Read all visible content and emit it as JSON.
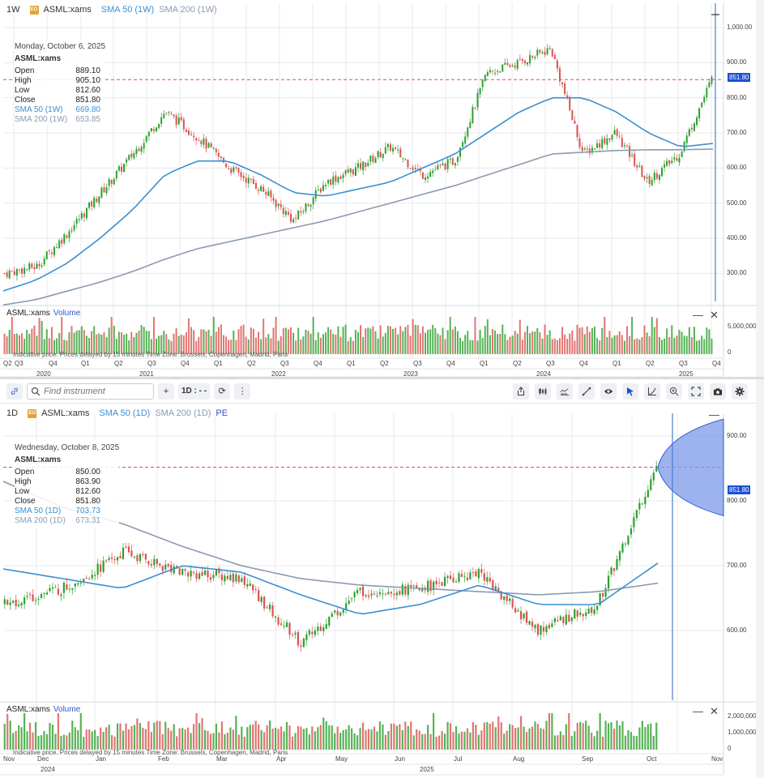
{
  "weekly": {
    "timeframe": "1W",
    "exchange_badge": "EO",
    "symbol": "ASML:xams",
    "sma50_label": "SMA 50 (1W)",
    "sma200_label": "SMA 200 (1W)",
    "ohlc": {
      "date": "Monday, October 6, 2025",
      "symbol": "ASML:xams",
      "open_label": "Open",
      "open": "889.10",
      "high_label": "High",
      "high": "905.10",
      "low_label": "Low",
      "low": "812.60",
      "close_label": "Close",
      "close": "851.80",
      "sma50_label": "SMA 50 (1W)",
      "sma50": "669.80",
      "sma200_label": "SMA 200 (1W)",
      "sma200": "653.85"
    },
    "price_axis": [
      "1,000.00",
      "900.00",
      "800.00",
      "700.00",
      "600.00",
      "500.00",
      "400.00",
      "300.00"
    ],
    "last_price_tag": "851.80",
    "volume": {
      "symbol": "ASML:xams",
      "label": "Volume",
      "axis": [
        "5,000,000",
        "0"
      ]
    },
    "disclaimer": "Indicative price. Prices delayed by 15 minutes    Time Zone: Brussels, Copenhagen, Madrid, Paris",
    "x_labels": [
      "Q2",
      "Q3",
      "Q4",
      "Q1",
      "Q2",
      "Q3",
      "Q4",
      "Q1",
      "Q2",
      "Q3",
      "Q4",
      "Q1",
      "Q2",
      "Q3",
      "Q4",
      "Q1",
      "Q2",
      "Q3",
      "Q4",
      "Q1",
      "Q2",
      "Q3",
      "Q4"
    ],
    "years": [
      "2020",
      "2021",
      "2022",
      "2023",
      "2024",
      "2025"
    ],
    "minimize": "—",
    "close": "✕"
  },
  "toolbar": {
    "link_icon": "🔗",
    "search_placeholder": "Find instrument",
    "add": "+",
    "interval": "1D : - -",
    "refresh": "⟳",
    "more": "⋮",
    "right_buttons": [
      "share",
      "indicators",
      "chart-type",
      "draw",
      "visibility",
      "cursor",
      "scale",
      "zoom",
      "fullscreen",
      "snapshot",
      "settings"
    ]
  },
  "daily": {
    "timeframe": "1D",
    "exchange_badge": "EO",
    "symbol": "ASML:xams",
    "sma50_label": "SMA 50 (1D)",
    "sma200_label": "SMA 200 (1D)",
    "pe_label": "PE",
    "ohlc": {
      "date": "Wednesday, October 8, 2025",
      "symbol": "ASML:xams",
      "open_label": "Open",
      "open": "850.00",
      "high_label": "High",
      "high": "863.90",
      "low_label": "Low",
      "low": "812.60",
      "close_label": "Close",
      "close": "851.80",
      "sma50_label": "SMA 50 (1D)",
      "sma50": "703.73",
      "sma200_label": "SMA 200 (1D)",
      "sma200": "673.31"
    },
    "price_axis": [
      "900.00",
      "800.00",
      "700.00",
      "600.00"
    ],
    "last_price_tag": "851.80",
    "volume": {
      "symbol": "ASML:xams",
      "label": "Volume",
      "axis": [
        "2,000,000",
        "1,000,000",
        "0"
      ]
    },
    "disclaimer": "Indicative price. Prices delayed by 15 minutes    Time Zone: Brussels, Copenhagen, Madrid, Paris",
    "x_labels": [
      "Nov",
      "Dec",
      "Jan",
      "Feb",
      "Mar",
      "Apr",
      "May",
      "Jun",
      "Jul",
      "Aug",
      "Sep",
      "Oct",
      "Nov"
    ],
    "years": [
      "2024",
      "2025"
    ],
    "minimize": "—",
    "close": "✕"
  },
  "colors": {
    "up": "#2ca02c",
    "down": "#d9534f",
    "sma50": "#3a8fd1",
    "sma200": "#8b9ab0",
    "crosshair": "#4a7bd6",
    "last_price_line": "#d9534f",
    "projection_fill": "#7b9ae8",
    "price_tag_bg": "#1c4fd6"
  },
  "chart_data": [
    {
      "type": "candlestick",
      "title": "ASML:xams 1W",
      "ylim": [
        220,
        1060
      ],
      "x": [
        "2020-Q2",
        "2020-Q3",
        "2020-Q4",
        "2021-Q1",
        "2021-Q2",
        "2021-Q3",
        "2021-Q4",
        "2022-Q1",
        "2022-Q2",
        "2022-Q3",
        "2022-Q4",
        "2023-Q1",
        "2023-Q2",
        "2023-Q3",
        "2023-Q4",
        "2024-Q1",
        "2024-Q2",
        "2024-Q3",
        "2024-Q4",
        "2025-Q1",
        "2025-Q2",
        "2025-Q3",
        "2025-Q4"
      ],
      "close_approx": [
        300,
        320,
        420,
        530,
        640,
        760,
        690,
        600,
        540,
        450,
        560,
        600,
        660,
        580,
        620,
        870,
        900,
        940,
        640,
        700,
        560,
        640,
        852
      ],
      "sma50_approx": [
        250,
        280,
        330,
        400,
        480,
        580,
        620,
        620,
        580,
        530,
        520,
        540,
        560,
        600,
        640,
        700,
        760,
        800,
        800,
        760,
        700,
        660,
        670
      ],
      "sma200_approx": [
        210,
        225,
        250,
        275,
        305,
        340,
        370,
        390,
        410,
        430,
        450,
        475,
        500,
        525,
        550,
        580,
        610,
        640,
        645,
        650,
        652,
        652,
        654
      ],
      "volume_axis": [
        0,
        5000000
      ]
    },
    {
      "type": "candlestick",
      "title": "ASML:xams 1D",
      "ylim": [
        500,
        935
      ],
      "x": [
        "Nov",
        "Dec",
        "Jan",
        "Feb",
        "Mar",
        "Apr",
        "May",
        "Jun",
        "Jul",
        "Aug",
        "Sep",
        "Oct"
      ],
      "close_approx": [
        640,
        665,
        720,
        690,
        680,
        580,
        660,
        665,
        690,
        600,
        640,
        852
      ],
      "sma50_approx": [
        695,
        680,
        665,
        700,
        690,
        655,
        625,
        640,
        670,
        640,
        640,
        704
      ],
      "sma200_approx": [
        830,
        790,
        765,
        730,
        700,
        680,
        670,
        665,
        660,
        655,
        660,
        673
      ],
      "volume_axis": [
        0,
        2000000
      ]
    }
  ]
}
